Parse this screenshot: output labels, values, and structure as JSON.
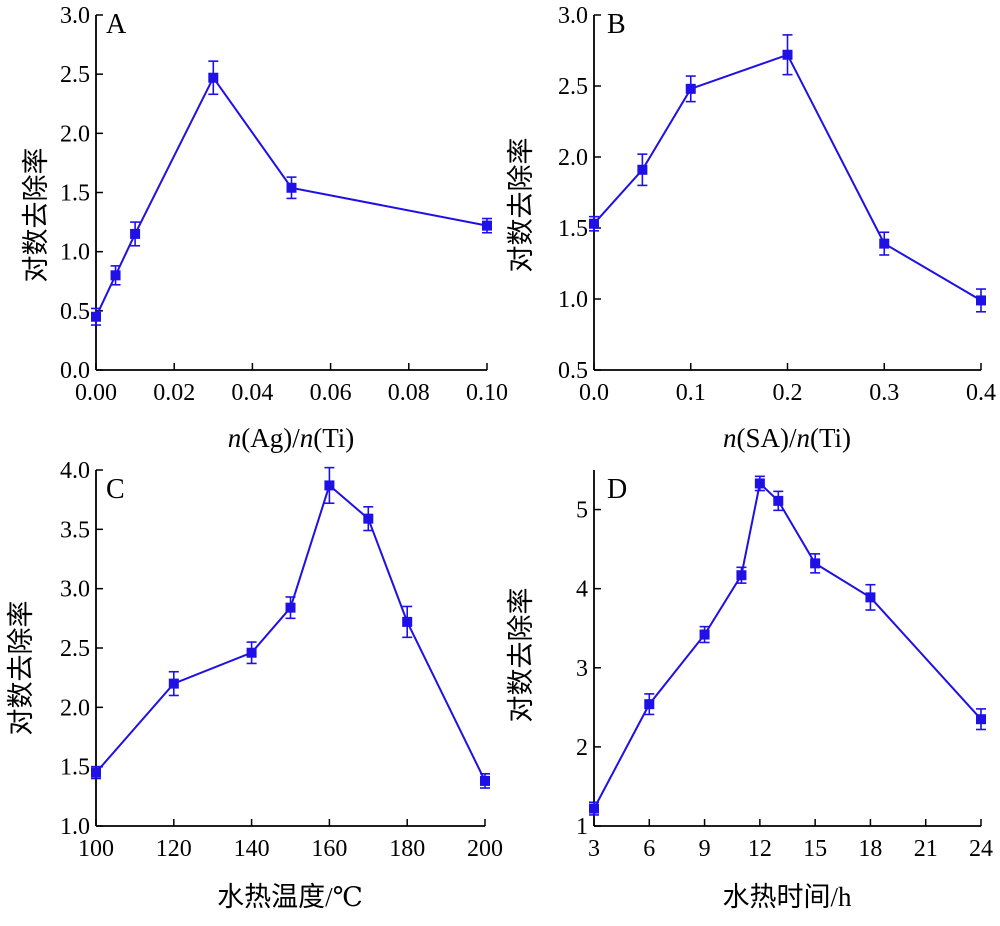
{
  "colors": {
    "series": "#1f10e6",
    "axis": "#000000"
  },
  "chart_data": [
    {
      "panel": "A",
      "type": "line",
      "xlabel_prefix": "n",
      "xlabel_mid": "(Ag)/",
      "xlabel_var2": "n",
      "xlabel_suffix": "(Ti)",
      "ylabel": "对数去除率",
      "xlim": [
        0,
        0.1
      ],
      "ylim": [
        0,
        3.0
      ],
      "x_ticks": [
        "0.00",
        "0.02",
        "0.04",
        "0.06",
        "0.08",
        "0.10"
      ],
      "x_tick_values": [
        0,
        0.02,
        0.04,
        0.06,
        0.08,
        0.1
      ],
      "y_ticks": [
        "0.0",
        "0.5",
        "1.0",
        "1.5",
        "2.0",
        "2.5",
        "3.0"
      ],
      "y_tick_values": [
        0,
        0.5,
        1.0,
        1.5,
        2.0,
        2.5,
        3.0
      ],
      "x": [
        0.0,
        0.005,
        0.01,
        0.03,
        0.05,
        0.1
      ],
      "y": [
        0.45,
        0.8,
        1.15,
        2.47,
        1.54,
        1.22
      ],
      "error": [
        0.07,
        0.08,
        0.1,
        0.14,
        0.09,
        0.06
      ],
      "grid": false,
      "legend": "none"
    },
    {
      "panel": "B",
      "type": "line",
      "xlabel_prefix": "n",
      "xlabel_mid": "(SA)/",
      "xlabel_var2": "n",
      "xlabel_suffix": "(Ti)",
      "ylabel": "对数去除率",
      "xlim": [
        0,
        0.4
      ],
      "ylim": [
        0.5,
        3.0
      ],
      "x_ticks": [
        "0.0",
        "0.1",
        "0.2",
        "0.3",
        "0.4"
      ],
      "x_tick_values": [
        0,
        0.1,
        0.2,
        0.3,
        0.4
      ],
      "y_ticks": [
        "0.5",
        "1.0",
        "1.5",
        "2.0",
        "2.5",
        "3.0"
      ],
      "y_tick_values": [
        0.5,
        1.0,
        1.5,
        2.0,
        2.5,
        3.0
      ],
      "x": [
        0.0,
        0.05,
        0.1,
        0.2,
        0.3,
        0.4
      ],
      "y": [
        1.53,
        1.91,
        2.48,
        2.72,
        1.39,
        0.99
      ],
      "error": [
        0.05,
        0.11,
        0.09,
        0.14,
        0.08,
        0.08
      ],
      "grid": false,
      "legend": "none"
    },
    {
      "panel": "C",
      "type": "line",
      "xlabel": "水热温度/℃",
      "ylabel": "对数去除率",
      "xlim": [
        100,
        200
      ],
      "ylim": [
        1.0,
        4.0
      ],
      "x_ticks": [
        "100",
        "120",
        "140",
        "160",
        "180",
        "200"
      ],
      "x_tick_values": [
        100,
        120,
        140,
        160,
        180,
        200
      ],
      "y_ticks": [
        "1.0",
        "1.5",
        "2.0",
        "2.5",
        "3.0",
        "3.5",
        "4.0"
      ],
      "y_tick_values": [
        1.0,
        1.5,
        2.0,
        2.5,
        3.0,
        3.5,
        4.0
      ],
      "x": [
        100,
        120,
        140,
        150,
        160,
        170,
        180,
        200
      ],
      "y": [
        1.45,
        2.2,
        2.46,
        2.84,
        3.87,
        3.59,
        2.72,
        1.38
      ],
      "error": [
        0.05,
        0.1,
        0.09,
        0.09,
        0.15,
        0.1,
        0.13,
        0.06
      ],
      "grid": false,
      "legend": "none"
    },
    {
      "panel": "D",
      "type": "line",
      "xlabel": "水热时间/h",
      "ylabel": "对数去除率",
      "xlim": [
        3,
        24
      ],
      "ylim": [
        1.0,
        5.5
      ],
      "x_ticks": [
        "3",
        "6",
        "9",
        "12",
        "15",
        "18",
        "21",
        "24"
      ],
      "x_tick_values": [
        3,
        6,
        9,
        12,
        15,
        18,
        21,
        24
      ],
      "y_ticks": [
        "1",
        "2",
        "3",
        "4",
        "5"
      ],
      "y_tick_values": [
        1,
        2,
        3,
        4,
        5
      ],
      "x": [
        3,
        6,
        9,
        11,
        12,
        13,
        15,
        18,
        24
      ],
      "y": [
        1.22,
        2.54,
        3.42,
        4.17,
        5.33,
        5.11,
        4.32,
        3.89,
        2.35
      ],
      "error": [
        0.08,
        0.13,
        0.1,
        0.1,
        0.09,
        0.12,
        0.12,
        0.16,
        0.13
      ],
      "grid": false,
      "legend": "none"
    }
  ]
}
